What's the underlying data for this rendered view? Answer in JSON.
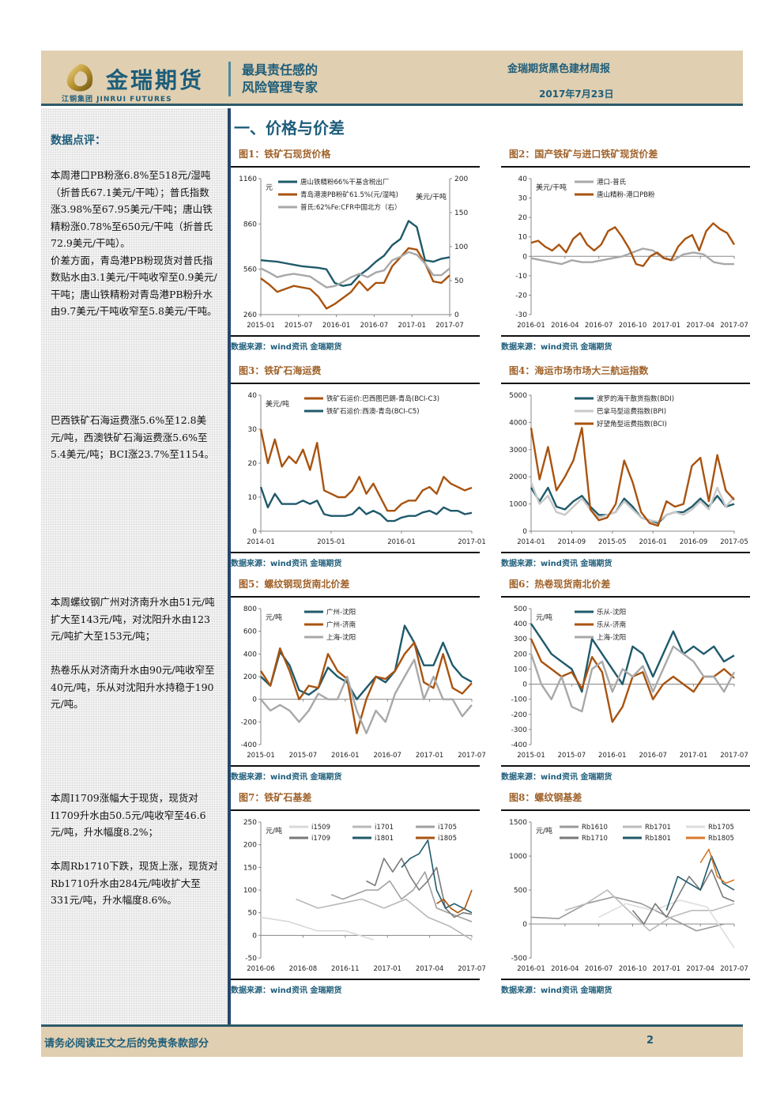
{
  "header": {
    "logo_cn": "金瑞期货",
    "logo_sub": "江铜集团 JINRUI FUTURES",
    "slogan_line1": "最具责任感的",
    "slogan_line2": "风险管理专家",
    "report_title": "金瑞期货黑色建材周报",
    "report_date": "2017年7月23日"
  },
  "sidebar": {
    "title": "数据点评：",
    "paragraphs": [
      "本周港口PB粉涨6.8%至518元/湿吨（折普氏67.1美元/干吨）；普氏指数涨3.98%至67.95美元/干吨；唐山铁精粉涨0.78%至650元/干吨（折普氏72.9美元/干吨）。\n价差方面，青岛港PB粉现货对普氏指数贴水由3.1美元/干吨收窄至0.9美元/干吨；唐山铁精粉对青岛港PB粉升水由9.7美元/干吨收窄至5.8美元/干吨。",
      "巴西铁矿石海运费涨5.6%至12.8美元/吨，西澳铁矿石海运费涨5.6%至5.4美元/吨；BCI涨23.7%至1154。",
      "本周螺纹钢广州对济南升水由51元/吨扩大至143元/吨，对沈阳升水由123元/吨扩大至153元/吨；\n\n热卷乐从对济南升水由90元/吨收窄至40元/吨，乐从对沈阳升水持稳于190元/吨。",
      "本周I1709涨幅大于现货，现货对I1709升水由50.5元/吨收窄至46.6元/吨，升水幅度8.2%；\n\n本周Rb1710下跌，现货上涨，现货对Rb1710升水由284元/吨收扩大至331元/吨，升水幅度8.6%。"
    ]
  },
  "section_title": "一、价格与价差",
  "source_label": "数据来源：wind资讯 金瑞期货",
  "colors": {
    "teal": "#1f5a6b",
    "orange": "#a9530f",
    "gray": "#a8a8a8",
    "dark_gray": "#7a7a7a",
    "light_gray": "#d0d0d0",
    "bright_orange": "#d9782a"
  },
  "chart_data": [
    {
      "id": "fig1",
      "type": "line",
      "title": "图1：铁矿石现货价格",
      "ylabel": "元",
      "ylabel_right": "美元/干吨",
      "x_ticks": [
        "2015-01",
        "2015-07",
        "2016-01",
        "2016-07",
        "2017-01",
        "2017-07"
      ],
      "y_ticks": [
        260,
        560,
        860,
        1160
      ],
      "y_right_ticks": [
        0,
        50,
        100,
        150,
        200
      ],
      "ylim": [
        260,
        1160
      ],
      "ylim_right": [
        0,
        200
      ],
      "series": [
        {
          "name": "唐山铁精粉66%干基含税出厂",
          "axis": "left",
          "color": "#1f5a6b",
          "values": [
            620,
            615,
            610,
            600,
            590,
            580,
            575,
            570,
            560,
            470,
            450,
            460,
            520,
            560,
            610,
            650,
            720,
            760,
            880,
            840,
            620,
            610,
            630,
            640
          ]
        },
        {
          "name": "青岛港澳PB粉矿61.5%(元/湿吨)",
          "axis": "left",
          "color": "#a9530f",
          "values": [
            500,
            460,
            410,
            430,
            450,
            440,
            430,
            380,
            300,
            330,
            370,
            410,
            480,
            420,
            470,
            470,
            580,
            640,
            700,
            690,
            600,
            480,
            470,
            520
          ]
        },
        {
          "name": "普氏:62%Fe:CFR中国北方（右）",
          "axis": "right",
          "color": "#a8a8a8",
          "values": [
            68,
            62,
            55,
            58,
            60,
            58,
            56,
            48,
            40,
            42,
            48,
            55,
            60,
            55,
            62,
            65,
            80,
            85,
            92,
            88,
            75,
            58,
            58,
            68
          ]
        }
      ]
    },
    {
      "id": "fig2",
      "type": "line",
      "title": "图2：国产铁矿与进口铁矿现货价差",
      "ylabel": "美元/干吨",
      "x_ticks": [
        "2016-01",
        "2016-04",
        "2016-07",
        "2016-10",
        "2017-01",
        "2017-04",
        "2017-07"
      ],
      "y_ticks": [
        -30,
        -20,
        -10,
        0,
        10,
        20,
        30,
        40
      ],
      "ylim": [
        -30,
        40
      ],
      "series": [
        {
          "name": "港口-普氏",
          "color": "#a8a8a8",
          "values": [
            -1,
            -2,
            -3,
            -4,
            -2,
            -3,
            -3,
            -2,
            -1,
            0,
            2,
            4,
            3,
            -1,
            -2,
            1,
            2,
            1,
            -3,
            -4,
            -4
          ]
        },
        {
          "name": "唐山精粉-港口PB粉",
          "color": "#a9530f",
          "values": [
            7,
            8,
            5,
            3,
            6,
            2,
            9,
            12,
            6,
            3,
            6,
            13,
            15,
            10,
            4,
            -4,
            -5,
            0,
            2,
            -1,
            -2,
            5,
            9,
            11,
            3,
            13,
            17,
            14,
            12,
            6
          ]
        }
      ]
    },
    {
      "id": "fig3",
      "type": "line",
      "title": "图3：铁矿石海运费",
      "ylabel": "美元/吨",
      "x_ticks": [
        "2014-01",
        "2015-01",
        "2016-01",
        "2017-01"
      ],
      "y_ticks": [
        0,
        10,
        20,
        30,
        40
      ],
      "ylim": [
        0,
        40
      ],
      "series": [
        {
          "name": "铁矿石运价:巴西图巴朗-青岛(BCI-C3)",
          "color": "#a9530f",
          "values": [
            30,
            20,
            27,
            19,
            22,
            20,
            24,
            18,
            26,
            12,
            11,
            10,
            10,
            12,
            16,
            11,
            14,
            10,
            6,
            6,
            8,
            9,
            9,
            12,
            13,
            11,
            16,
            14,
            13,
            12,
            12.8
          ]
        },
        {
          "name": "铁矿石运价:西澳-青岛(BCI-C5)",
          "color": "#1f5a6b",
          "values": [
            13,
            7,
            11,
            8,
            8,
            8,
            9,
            8,
            9,
            5,
            4.5,
            4.5,
            4.5,
            5,
            7,
            5,
            6,
            5,
            3,
            3,
            4,
            4.5,
            4.5,
            5.5,
            6,
            5,
            7,
            6,
            6,
            5,
            5.4
          ]
        }
      ]
    },
    {
      "id": "fig4",
      "type": "line",
      "title": "图4：海运市场市场大三航运指数",
      "x_ticks": [
        "2014-01",
        "2014-09",
        "2015-05",
        "2016-01",
        "2016-09",
        "2017-05"
      ],
      "y_ticks": [
        0,
        1000,
        2000,
        3000,
        4000,
        5000
      ],
      "ylim": [
        0,
        5000
      ],
      "series": [
        {
          "name": "波罗的海干散货指数(BDI)",
          "color": "#1f5a6b",
          "values": [
            1600,
            1100,
            1600,
            900,
            800,
            1100,
            1300,
            900,
            600,
            600,
            700,
            1200,
            900,
            500,
            400,
            300,
            600,
            700,
            700,
            900,
            1200,
            900,
            1300,
            900,
            1000
          ]
        },
        {
          "name": "巴拿马型运费指数(BPI)",
          "color": "#c8c8c8",
          "values": [
            1800,
            1000,
            1300,
            700,
            600,
            900,
            1200,
            800,
            500,
            600,
            700,
            1100,
            800,
            500,
            400,
            350,
            600,
            700,
            600,
            800,
            1100,
            800,
            1600,
            900,
            1250
          ]
        },
        {
          "name": "好望角型运费指数(BCI)",
          "color": "#a9530f",
          "values": [
            3800,
            1900,
            3100,
            1500,
            2000,
            2600,
            3800,
            800,
            400,
            500,
            1000,
            2600,
            1800,
            700,
            300,
            200,
            1100,
            900,
            1000,
            2400,
            2700,
            1100,
            2800,
            1500,
            1154
          ]
        }
      ]
    },
    {
      "id": "fig5",
      "type": "line",
      "title": "图5：螺纹钢现货南北价差",
      "ylabel": "元/吨",
      "x_ticks": [
        "2015-01",
        "2015-07",
        "2016-01",
        "2016-07",
        "2017-01",
        "2017-07"
      ],
      "y_ticks": [
        -400,
        -200,
        0,
        200,
        400,
        600,
        800
      ],
      "ylim": [
        -400,
        800
      ],
      "series": [
        {
          "name": "广州-沈阳",
          "color": "#1f5a6b",
          "values": [
            200,
            120,
            420,
            300,
            80,
            40,
            100,
            280,
            200,
            150,
            0,
            100,
            200,
            150,
            250,
            650,
            500,
            300,
            300,
            500,
            300,
            200,
            153
          ]
        },
        {
          "name": "广州-济南",
          "color": "#a9530f",
          "values": [
            250,
            120,
            450,
            250,
            0,
            120,
            100,
            400,
            250,
            180,
            -300,
            0,
            200,
            180,
            250,
            400,
            500,
            150,
            100,
            400,
            100,
            50,
            143
          ]
        },
        {
          "name": "上海-沈阳",
          "color": "#a8a8a8",
          "values": [
            0,
            -100,
            -50,
            -100,
            -200,
            -100,
            50,
            0,
            0,
            200,
            -100,
            -300,
            -100,
            -200,
            50,
            200,
            350,
            0,
            200,
            0,
            0,
            -150,
            -50
          ]
        }
      ]
    },
    {
      "id": "fig6",
      "type": "line",
      "title": "图6：热卷现货南北价差",
      "ylabel": "元/吨",
      "x_ticks": [
        "2015-01",
        "2015-07",
        "2016-01",
        "2016-07",
        "2017-01",
        "2017-07"
      ],
      "y_ticks": [
        -400,
        -300,
        -200,
        -100,
        0,
        100,
        200,
        300,
        400,
        500
      ],
      "ylim": [
        -400,
        500
      ],
      "series": [
        {
          "name": "乐从-沈阳",
          "color": "#1f5a6b",
          "values": [
            400,
            300,
            200,
            150,
            100,
            -50,
            300,
            200,
            100,
            0,
            250,
            200,
            50,
            200,
            350,
            200,
            250,
            200,
            250,
            150,
            190
          ]
        },
        {
          "name": "乐从-济南",
          "color": "#a9530f",
          "values": [
            300,
            150,
            100,
            50,
            80,
            -30,
            180,
            80,
            -250,
            -150,
            50,
            80,
            -100,
            0,
            50,
            0,
            -50,
            50,
            50,
            100,
            40
          ]
        },
        {
          "name": "上海-沈阳",
          "color": "#a8a8a8",
          "values": [
            200,
            0,
            -100,
            50,
            -150,
            -180,
            100,
            150,
            -50,
            100,
            50,
            120,
            -50,
            100,
            250,
            200,
            150,
            50,
            50,
            -50,
            80
          ]
        }
      ]
    },
    {
      "id": "fig7",
      "type": "line",
      "title": "图7：铁矿石基差",
      "ylabel": "元/吨",
      "x_ticks": [
        "2016-06",
        "2016-08",
        "2016-11",
        "2017-01",
        "2017-04",
        "2017-07"
      ],
      "y_ticks": [
        -50,
        0,
        50,
        100,
        150,
        200,
        250
      ],
      "ylim": [
        -50,
        250
      ],
      "series": [
        {
          "name": "i1509",
          "color": "#d8d8d8",
          "values": [
            40,
            30,
            10,
            10,
            -10
          ]
        },
        {
          "name": "i1701",
          "color": "#b8b8b8",
          "values": [
            80,
            60,
            70,
            80,
            60,
            80,
            40,
            20,
            -10
          ]
        },
        {
          "name": "i1705",
          "color": "#a0a0a0",
          "values": [
            90,
            80,
            90,
            100,
            100,
            120,
            80,
            100,
            140,
            60,
            50,
            40,
            30
          ]
        },
        {
          "name": "i1709",
          "color": "#7a7a7a",
          "values": [
            120,
            110,
            170,
            140,
            170,
            130,
            100,
            120,
            150,
            60,
            40,
            50,
            46.6
          ]
        },
        {
          "name": "i1801",
          "color": "#1f5a6b",
          "values": [
            150,
            170,
            180,
            210,
            100,
            60,
            70,
            60,
            50
          ]
        },
        {
          "name": "i1805",
          "color": "#a9530f",
          "values": [
            70,
            80,
            60,
            50,
            60,
            100
          ]
        }
      ]
    },
    {
      "id": "fig8",
      "type": "line",
      "title": "图8：螺纹钢基差",
      "ylabel": "元/吨",
      "x_ticks": [
        "2016-01",
        "2016-04",
        "2016-07",
        "2016-10",
        "2017-01",
        "2017-04",
        "2017-07"
      ],
      "y_ticks": [
        -500,
        0,
        500,
        1000,
        1500
      ],
      "ylim": [
        -500,
        1500
      ],
      "series": [
        {
          "name": "Rb1610",
          "color": "#9a9a9a",
          "values": [
            100,
            80,
            300,
            400,
            300,
            100,
            -100,
            0
          ]
        },
        {
          "name": "Rb1701",
          "color": "#bbbbbb",
          "values": [
            200,
            300,
            500,
            200,
            -100,
            100,
            200,
            200,
            300
          ]
        },
        {
          "name": "Rb1705",
          "color": "#dddddd",
          "values": [
            100,
            300,
            200,
            350,
            250,
            -350
          ]
        },
        {
          "name": "Rb1710",
          "color": "#7a7a7a",
          "values": [
            200,
            0,
            300,
            100,
            400,
            700,
            500,
            800,
            400,
            331
          ]
        },
        {
          "name": "Rb1801",
          "color": "#1f5a6b",
          "values": [
            200,
            700,
            600,
            500,
            1000,
            600,
            500
          ]
        },
        {
          "name": "Rb1805",
          "color": "#d9782a",
          "values": [
            900,
            1100,
            700,
            600,
            650
          ]
        }
      ]
    }
  ],
  "footer": {
    "disclaimer": "请务必阅读正文之后的免责条款部分",
    "page_number": "2"
  }
}
